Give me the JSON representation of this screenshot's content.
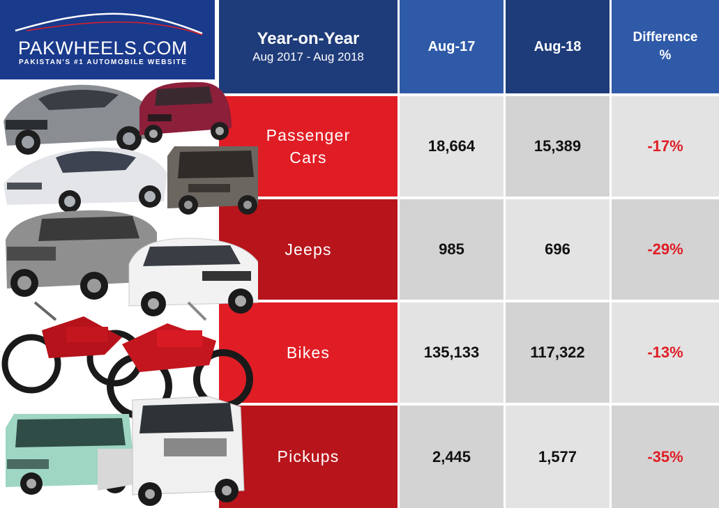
{
  "logo": {
    "name": "PAKWHEELS.COM",
    "tagline": "PAKISTAN'S #1 AUTOMOBILE WEBSITE"
  },
  "header": {
    "title": "Year-on-Year",
    "subtitle": "Aug 2017 -  Aug 2018",
    "col1": "Aug-17",
    "col2": "Aug-18",
    "col3_line1": "Difference",
    "col3_line2": "%"
  },
  "rows": [
    {
      "category_line1": "Passenger",
      "category_line2": "Cars",
      "aug17": "18,664",
      "aug18": "15,389",
      "diff": "-17%"
    },
    {
      "category_line1": "Jeeps",
      "category_line2": "",
      "aug17": "985",
      "aug18": "696",
      "diff": "-29%"
    },
    {
      "category_line1": "Bikes",
      "category_line2": "",
      "aug17": "135,133",
      "aug18": "117,322",
      "diff": "-13%"
    },
    {
      "category_line1": "Pickups",
      "category_line2": "",
      "aug17": "2,445",
      "aug18": "1,577",
      "diff": "-35%"
    }
  ],
  "chart_data": {
    "type": "table",
    "title": "Year-on-Year",
    "subtitle": "Aug 2017 -  Aug 2018",
    "columns": [
      "Aug-17",
      "Aug-18",
      "Difference %"
    ],
    "categories": [
      "Passenger Cars",
      "Jeeps",
      "Bikes",
      "Pickups"
    ],
    "series": [
      {
        "name": "Aug-17",
        "values": [
          18664,
          985,
          135133,
          2445
        ]
      },
      {
        "name": "Aug-18",
        "values": [
          15389,
          696,
          117322,
          1577
        ]
      },
      {
        "name": "Difference %",
        "values": [
          -17,
          -29,
          -13,
          -35
        ]
      }
    ]
  },
  "colors": {
    "header_dark": "#1f3c7a",
    "header_blue": "#2f5aa8",
    "category_red": "#e01d25",
    "category_dark_red": "#b8141b",
    "negative": "#e01d25"
  },
  "icons": [
    "car-silhouette-icon",
    "sedan-icon",
    "hatchback-icon",
    "suv-icon",
    "motorcycle-icon",
    "pickup-truck-icon",
    "van-icon"
  ]
}
